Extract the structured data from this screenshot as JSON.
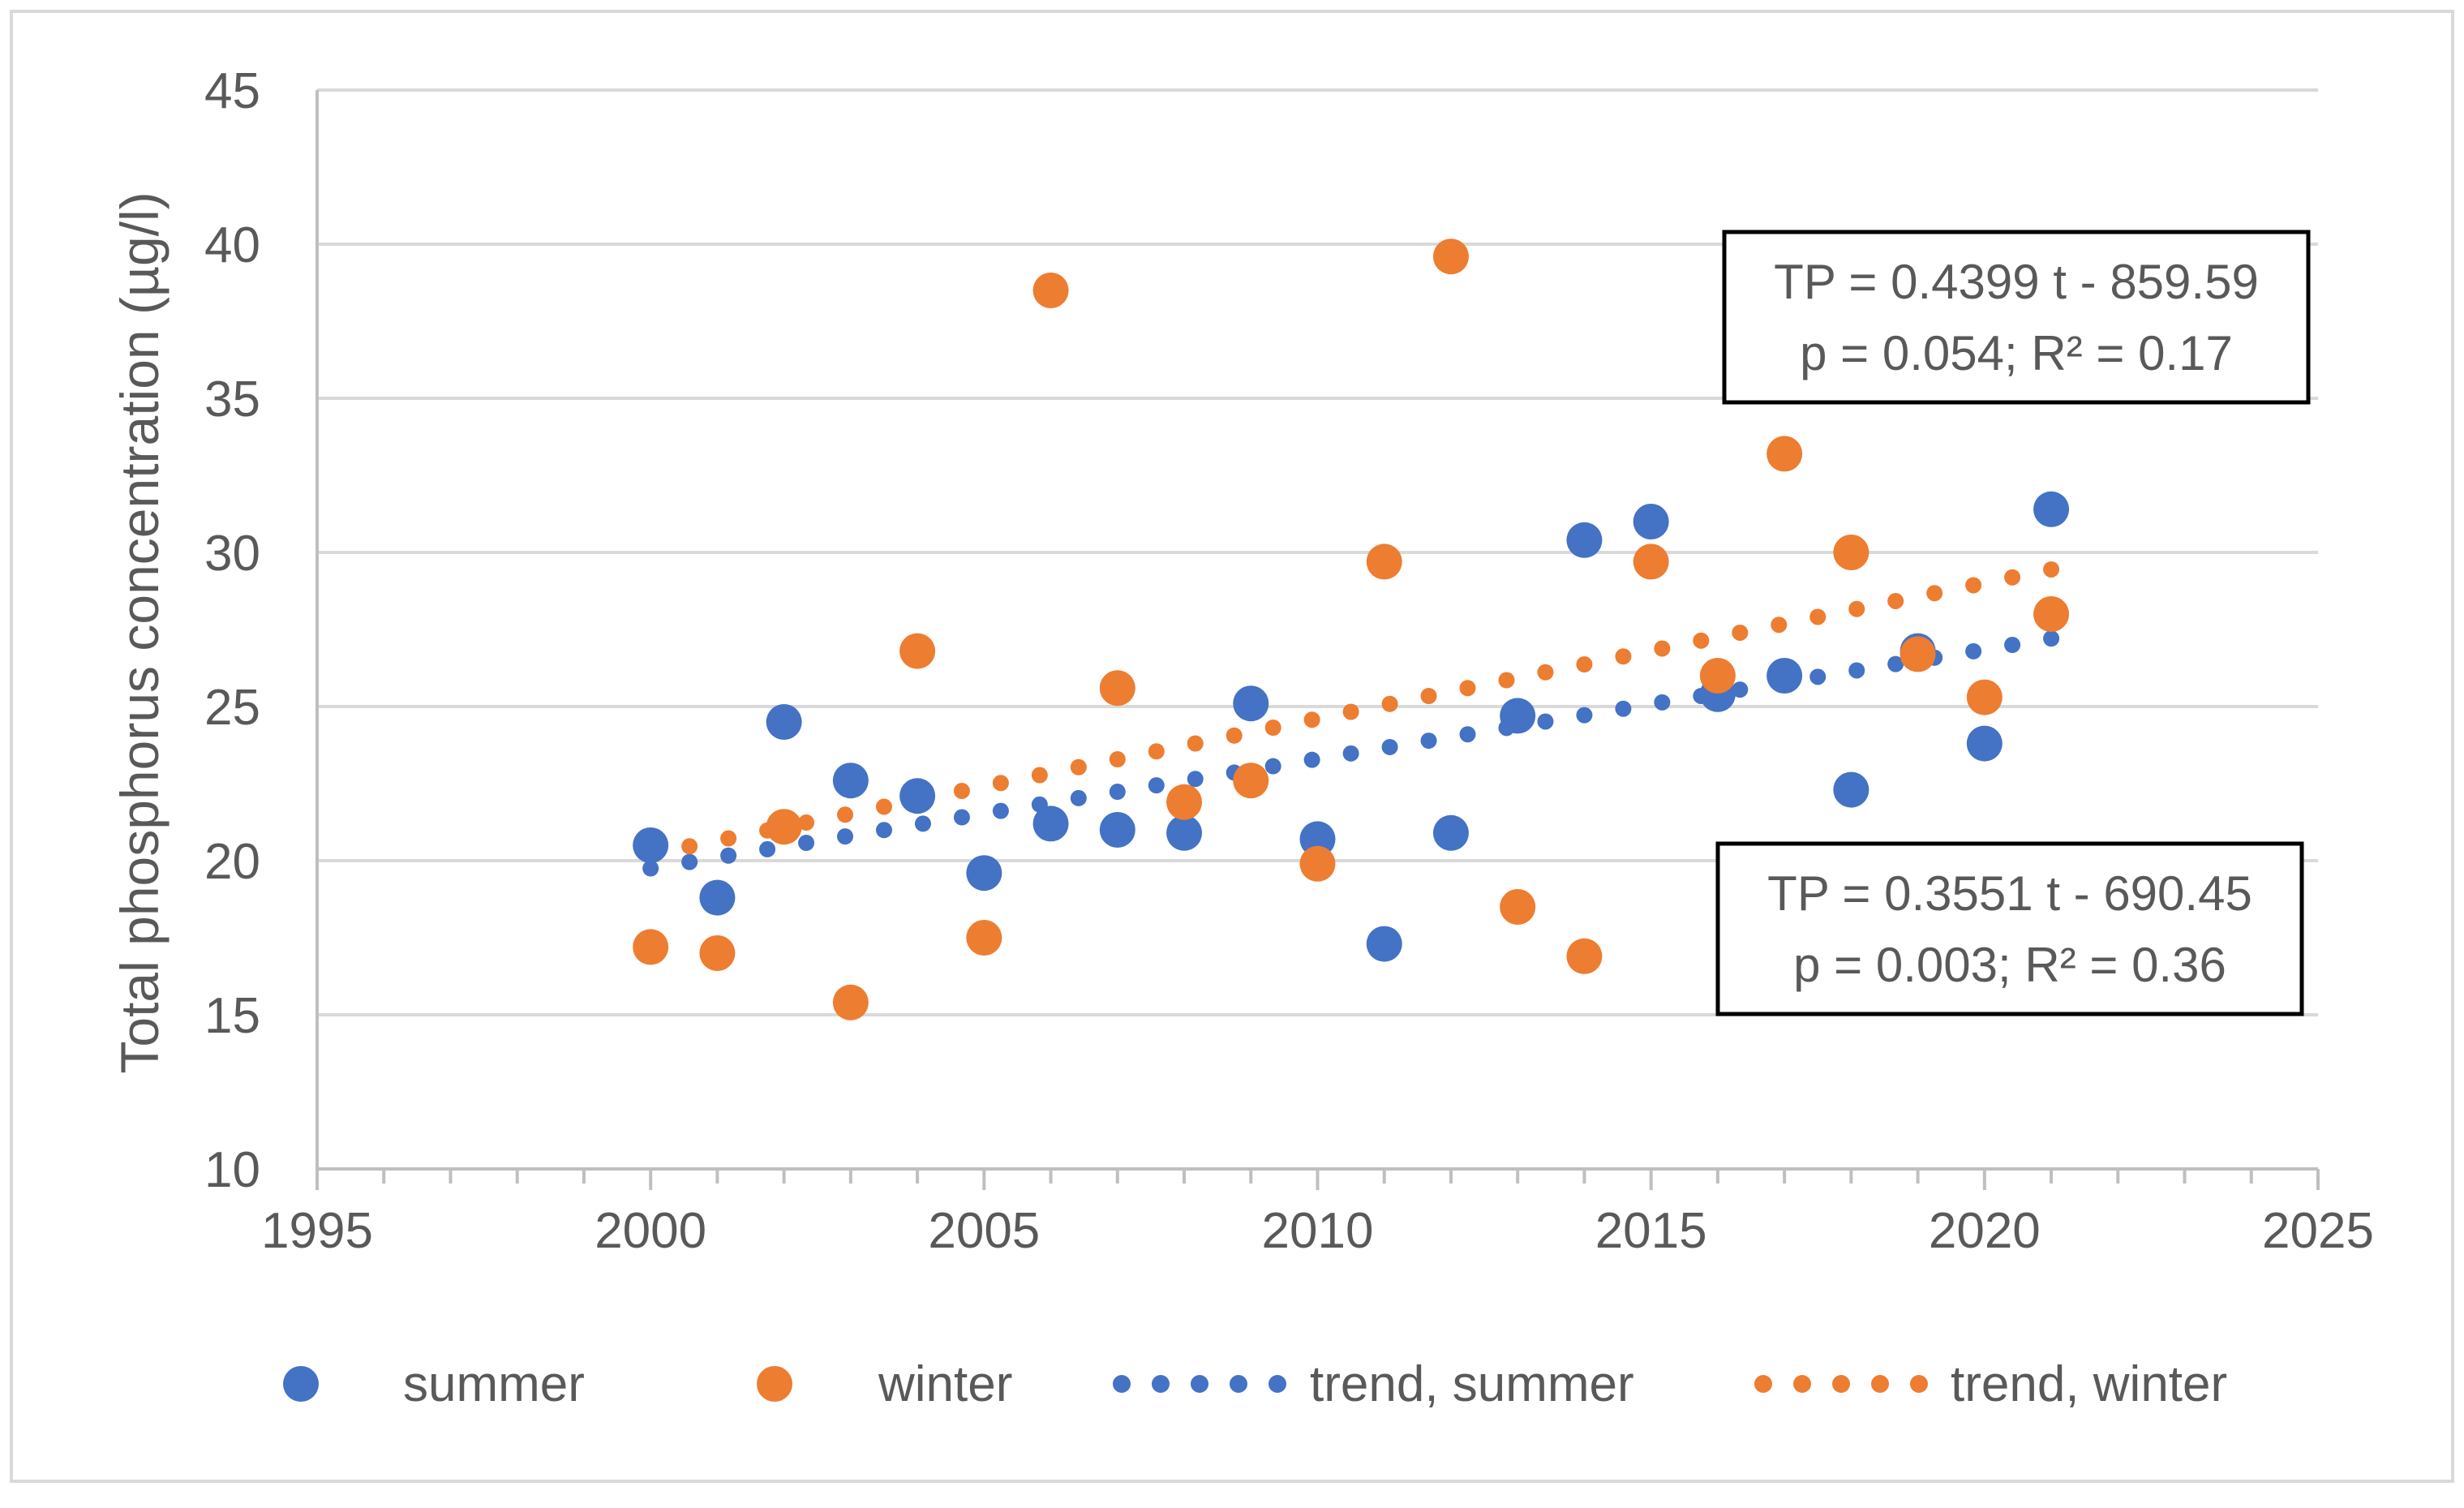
{
  "chart_data": {
    "type": "scatter",
    "title": "",
    "xlabel": "",
    "ylabel": "Total phosphorus concentration (µg/l)",
    "xlim": [
      1995,
      2025
    ],
    "ylim": [
      10,
      45
    ],
    "x_ticks": [
      1995,
      2000,
      2005,
      2010,
      2015,
      2020,
      2025
    ],
    "y_ticks": [
      10,
      15,
      20,
      25,
      30,
      35,
      40,
      45
    ],
    "grid": "horizontal",
    "legend_position": "bottom",
    "series": [
      {
        "name": "summer",
        "color": "#4472C4",
        "points": [
          {
            "x": 2000,
            "y": 20.5
          },
          {
            "x": 2001,
            "y": 18.8
          },
          {
            "x": 2002,
            "y": 24.5
          },
          {
            "x": 2003,
            "y": 22.6
          },
          {
            "x": 2004,
            "y": 22.1
          },
          {
            "x": 2005,
            "y": 19.6
          },
          {
            "x": 2006,
            "y": 21.2
          },
          {
            "x": 2007,
            "y": 21.0
          },
          {
            "x": 2008,
            "y": 20.9
          },
          {
            "x": 2009,
            "y": 25.1
          },
          {
            "x": 2010,
            "y": 20.7
          },
          {
            "x": 2011,
            "y": 17.3
          },
          {
            "x": 2012,
            "y": 20.9
          },
          {
            "x": 2013,
            "y": 24.7
          },
          {
            "x": 2014,
            "y": 30.4
          },
          {
            "x": 2015,
            "y": 31.0
          },
          {
            "x": 2016,
            "y": 25.4
          },
          {
            "x": 2017,
            "y": 26.0
          },
          {
            "x": 2018,
            "y": 22.3
          },
          {
            "x": 2019,
            "y": 26.8
          },
          {
            "x": 2020,
            "y": 23.8
          },
          {
            "x": 2021,
            "y": 31.4
          }
        ]
      },
      {
        "name": "winter",
        "color": "#ED7D31",
        "points": [
          {
            "x": 2000,
            "y": 17.2
          },
          {
            "x": 2001,
            "y": 17.0
          },
          {
            "x": 2002,
            "y": 21.1
          },
          {
            "x": 2003,
            "y": 15.4
          },
          {
            "x": 2004,
            "y": 26.8
          },
          {
            "x": 2005,
            "y": 17.5
          },
          {
            "x": 2006,
            "y": 38.5
          },
          {
            "x": 2007,
            "y": 25.6
          },
          {
            "x": 2008,
            "y": 21.9
          },
          {
            "x": 2009,
            "y": 22.6
          },
          {
            "x": 2010,
            "y": 19.9
          },
          {
            "x": 2011,
            "y": 29.7
          },
          {
            "x": 2012,
            "y": 39.6
          },
          {
            "x": 2013,
            "y": 18.5
          },
          {
            "x": 2014,
            "y": 16.9
          },
          {
            "x": 2015,
            "y": 29.7
          },
          {
            "x": 2016,
            "y": 26.0
          },
          {
            "x": 2017,
            "y": 33.2
          },
          {
            "x": 2018,
            "y": 30.0
          },
          {
            "x": 2019,
            "y": 26.7
          },
          {
            "x": 2020,
            "y": 25.3
          },
          {
            "x": 2021,
            "y": 28.0
          }
        ]
      }
    ],
    "trendlines": [
      {
        "name": "trend, summer",
        "color": "#4472C4",
        "slope": 0.3551,
        "intercept": -690.45,
        "x_range": [
          2000,
          2021
        ]
      },
      {
        "name": "trend, winter",
        "color": "#ED7D31",
        "slope": 0.4399,
        "intercept": -859.59,
        "x_range": [
          2000,
          2021
        ]
      }
    ],
    "annotations": [
      {
        "id": "winter_eq",
        "line1": "TP = 0.4399 t - 859.59",
        "line2": "p = 0.054; R² = 0.17"
      },
      {
        "id": "summer_eq",
        "line1": "TP = 0.3551 t - 690.45",
        "line2": "p = 0.003; R² = 0.36"
      }
    ],
    "legend": [
      "summer",
      "winter",
      "trend, summer",
      "trend, winter"
    ]
  }
}
